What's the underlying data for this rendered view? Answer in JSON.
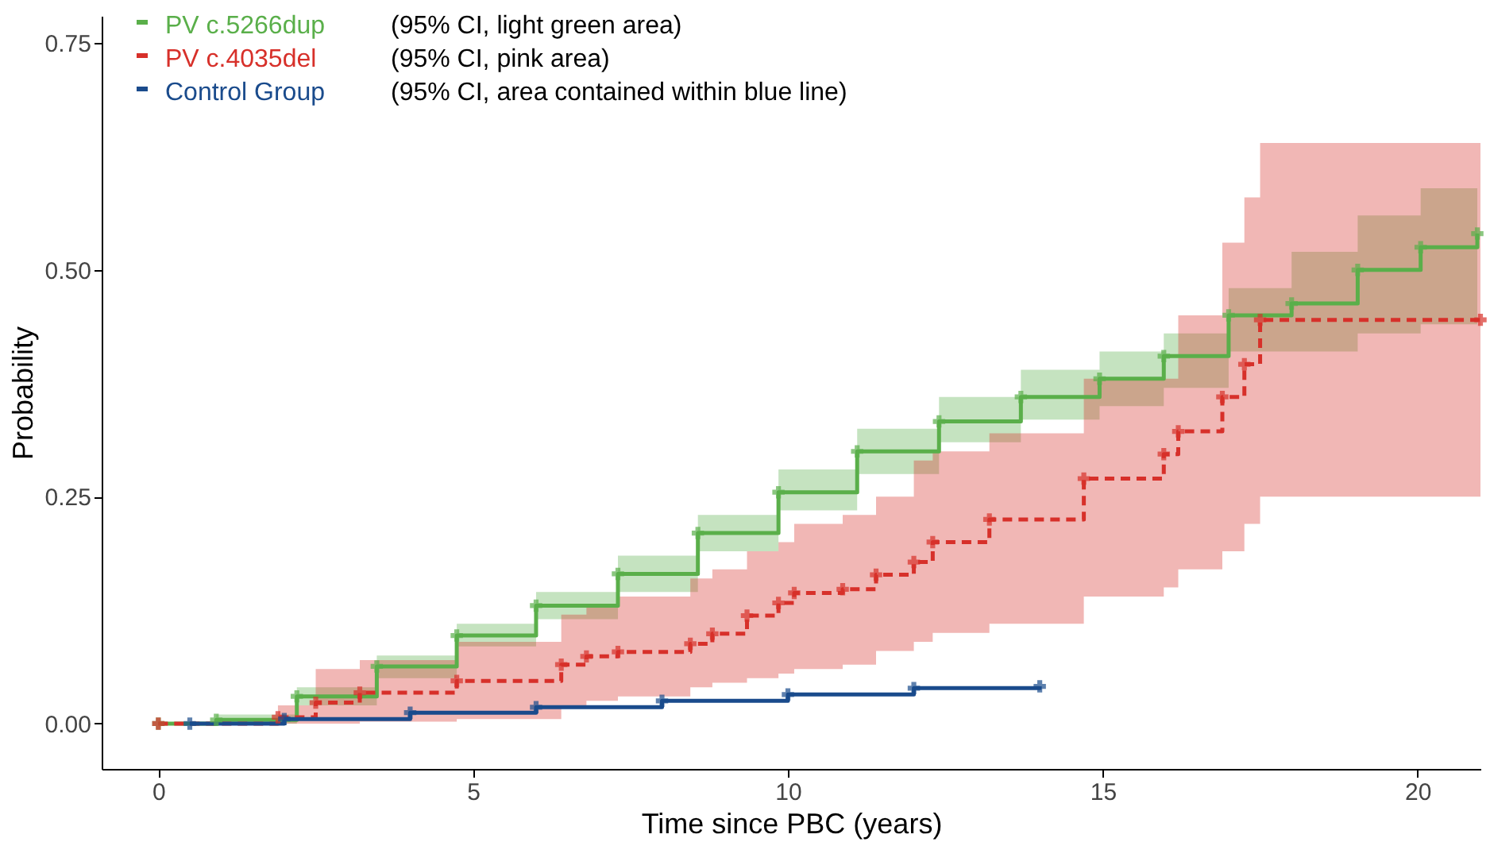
{
  "chart_data": {
    "type": "step",
    "xlabel": "Time since PBC (years)",
    "ylabel": "Probability",
    "xlim": [
      -0.9,
      21
    ],
    "ylim": [
      -0.05,
      0.78
    ],
    "xticks": [
      0,
      5,
      10,
      15,
      20
    ],
    "yticks": [
      {
        "value": 0,
        "label": "0.00"
      },
      {
        "value": 0.25,
        "label": "0.25"
      },
      {
        "value": 0.5,
        "label": "0.50"
      },
      {
        "value": 0.75,
        "label": "0.75"
      }
    ],
    "grid": false,
    "legend": "top left",
    "marker": "cross",
    "annotations": [
      "(95% CI, light green area)",
      "(95% CI,  pink area)",
      "(95% CI, area contained within blue line)"
    ],
    "series": [
      {
        "name": "PV c.5266dup",
        "color": "#5aaf4a",
        "line_style": "solid",
        "x": [
          0,
          0.92,
          2.2,
          3.47,
          4.74,
          6.0,
          7.3,
          8.57,
          9.85,
          11.1,
          12.4,
          13.7,
          14.95,
          15.97,
          17.0,
          18.0,
          19.05,
          20.05,
          20.95
        ],
        "values": [
          0,
          0.004,
          0.03,
          0.063,
          0.097,
          0.13,
          0.165,
          0.21,
          0.255,
          0.3,
          0.333,
          0.36,
          0.38,
          0.405,
          0.45,
          0.463,
          0.5,
          0.525,
          0.54
        ],
        "lower": [
          0,
          0.0,
          0.02,
          0.05,
          0.085,
          0.115,
          0.145,
          0.19,
          0.235,
          0.275,
          0.31,
          0.335,
          0.35,
          0.37,
          0.41,
          0.41,
          0.43,
          0.44,
          0.45
        ],
        "upper": [
          0,
          0.01,
          0.04,
          0.075,
          0.11,
          0.145,
          0.185,
          0.23,
          0.28,
          0.325,
          0.36,
          0.39,
          0.41,
          0.43,
          0.48,
          0.52,
          0.56,
          0.59,
          0.6
        ]
      },
      {
        "name": "PV c.4035del",
        "color": "#d7302a",
        "line_style": "dashed",
        "x": [
          0,
          1.9,
          2.5,
          3.2,
          4.74,
          6.4,
          6.8,
          7.3,
          8.45,
          8.8,
          9.35,
          9.85,
          10.1,
          10.87,
          11.4,
          12.0,
          12.3,
          13.2,
          14.7,
          15.97,
          16.2,
          16.9,
          17.25,
          17.5,
          21
        ],
        "values": [
          0,
          0.007,
          0.023,
          0.034,
          0.047,
          0.065,
          0.074,
          0.079,
          0.088,
          0.099,
          0.119,
          0.133,
          0.144,
          0.148,
          0.164,
          0.178,
          0.2,
          0.225,
          0.27,
          0.297,
          0.322,
          0.36,
          0.396,
          0.445,
          0.445
        ],
        "lower": [
          0,
          0,
          0,
          0.002,
          0.005,
          0.02,
          0.025,
          0.03,
          0.04,
          0.045,
          0.05,
          0.055,
          0.06,
          0.065,
          0.08,
          0.09,
          0.1,
          0.11,
          0.14,
          0.15,
          0.17,
          0.19,
          0.22,
          0.25,
          0.25
        ],
        "upper": [
          0,
          0.02,
          0.06,
          0.07,
          0.09,
          0.12,
          0.13,
          0.14,
          0.16,
          0.17,
          0.19,
          0.2,
          0.22,
          0.23,
          0.25,
          0.29,
          0.3,
          0.32,
          0.38,
          0.38,
          0.45,
          0.53,
          0.58,
          0.64,
          0.64
        ]
      },
      {
        "name": "Control Group",
        "color": "#1a4b8c",
        "line_style": "solid",
        "x": [
          0.5,
          2,
          4,
          6,
          8,
          10,
          12,
          14
        ],
        "values": [
          0,
          0.005,
          0.012,
          0.018,
          0.025,
          0.032,
          0.039,
          0.041
        ]
      }
    ]
  }
}
